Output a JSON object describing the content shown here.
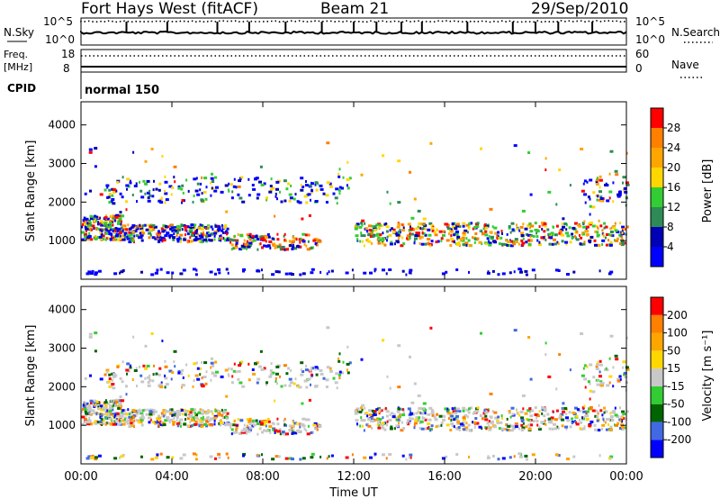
{
  "header": {
    "station": "Fort Hays West (fitACF)",
    "beam": "Beam 21",
    "date": "29/Sep/2010"
  },
  "noise_panel": {
    "left_label": "N.Sky",
    "right_label": "N.Search",
    "ticks": [
      "10^5",
      "10^0"
    ]
  },
  "freq_panel": {
    "left_label_1": "Freq.",
    "left_label_2": "[MHz]",
    "right_label": "Nave",
    "left_ticks": [
      "18",
      "8"
    ],
    "right_ticks": [
      "60",
      "0"
    ]
  },
  "cpid": {
    "label": "CPID",
    "value": "normal 150"
  },
  "chart_data": [
    {
      "type": "heatmap",
      "name": "power",
      "ylabel": "Slant Range [km]",
      "ylim": [
        0,
        4600
      ],
      "yticks": [
        "1000",
        "2000",
        "3000",
        "4000"
      ],
      "xlim": [
        0,
        24
      ],
      "colorbar": {
        "label": "Power [dB]",
        "ticks": [
          "4",
          "8",
          "12",
          "16",
          "20",
          "24",
          "28"
        ],
        "colors": [
          "#0000ff",
          "#0000b4",
          "#2e8b57",
          "#32cd32",
          "#ffd700",
          "#ffa500",
          "#ff7f00",
          "#ff0000"
        ]
      }
    },
    {
      "type": "heatmap",
      "name": "velocity",
      "ylabel": "Slant Range [km]",
      "ylim": [
        0,
        4600
      ],
      "yticks": [
        "1000",
        "2000",
        "3000",
        "4000"
      ],
      "xlim": [
        0,
        24
      ],
      "colorbar": {
        "label": "Velocity [m s⁻¹]",
        "ticks": [
          "200",
          "100",
          "50",
          "15",
          "-15",
          "-50",
          "-100",
          "-200"
        ],
        "colors": [
          "#0000ff",
          "#4169e1",
          "#006400",
          "#32cd32",
          "#c8c8c8",
          "#ffd700",
          "#ffa500",
          "#ff7f00",
          "#ff0000"
        ]
      }
    }
  ],
  "x_axis": {
    "ticks": [
      "00:00",
      "04:00",
      "08:00",
      "12:00",
      "16:00",
      "20:00",
      "00:00"
    ],
    "label": "Time UT"
  }
}
